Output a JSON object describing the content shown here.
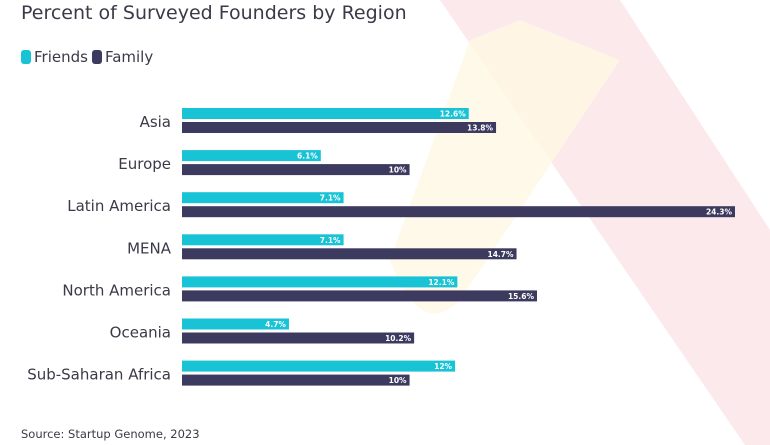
{
  "chart_data": {
    "type": "bar",
    "orientation": "horizontal",
    "title": "Percent of Surveyed Founders by Region",
    "categories": [
      "Asia",
      "Europe",
      "Latin America",
      "MENA",
      "North America",
      "Oceania",
      "Sub-Saharan Africa"
    ],
    "series": [
      {
        "name": "Friends",
        "color": "#19c3d6",
        "values": [
          12.6,
          6.1,
          7.1,
          7.1,
          12.1,
          4.7,
          12
        ],
        "labels": [
          "12.6%",
          "6.1%",
          "7.1%",
          "7.1%",
          "12.1%",
          "4.7%",
          "12%"
        ]
      },
      {
        "name": "Family",
        "color": "#3d3a5f",
        "values": [
          13.8,
          10,
          24.3,
          14.7,
          15.6,
          10.2,
          10
        ],
        "labels": [
          "13.8%",
          "10%",
          "24.3%",
          "14.7%",
          "15.6%",
          "10.2%",
          "10%"
        ]
      }
    ],
    "xlim": [
      0,
      24.3
    ],
    "legend": "top-left",
    "grid": false,
    "source": "Source: Startup Genome, 2023"
  }
}
